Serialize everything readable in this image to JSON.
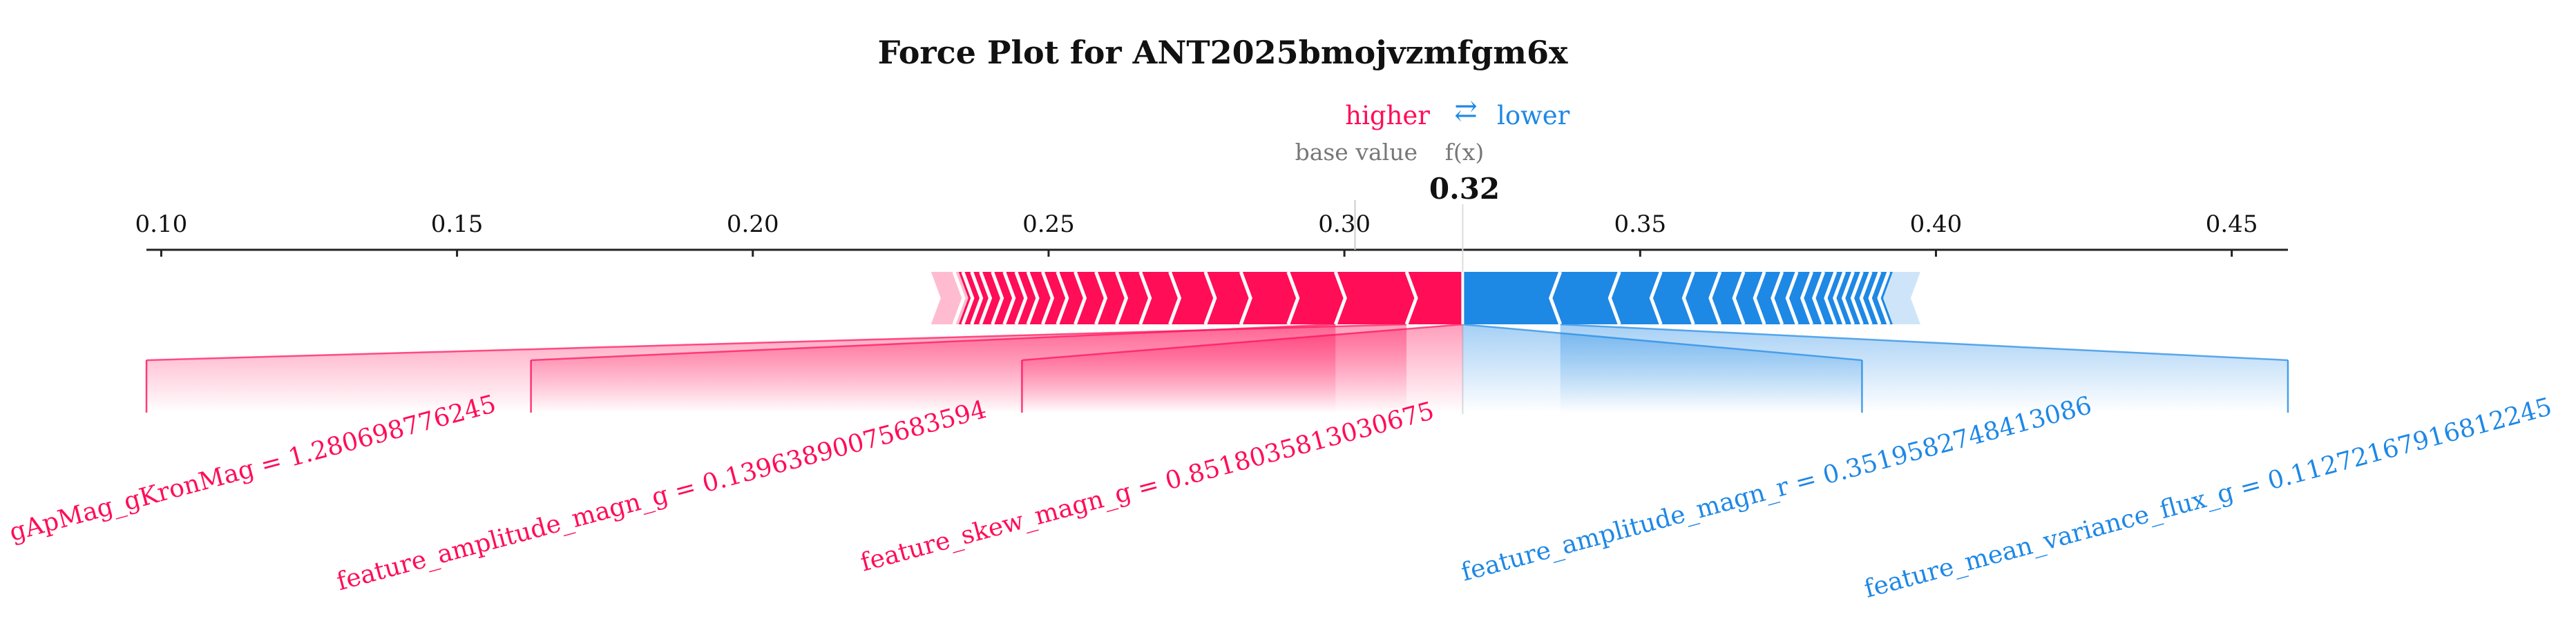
{
  "chart_data": {
    "type": "force",
    "title": "Force Plot for ANT2025bmojvzmfgm6x",
    "legend": {
      "higher": "higher",
      "lower": "lower",
      "arrows": "⇄"
    },
    "base_value_label": "base value",
    "fx_label": "f(x)",
    "output_value": 0.32,
    "output_text": "0.32",
    "base_value": 0.3018,
    "xlim": [
      0.0975,
      0.4595
    ],
    "ticks": [
      0.1,
      0.15,
      0.2,
      0.25,
      0.3,
      0.35,
      0.4,
      0.45
    ],
    "tick_labels": [
      "0.10",
      "0.15",
      "0.20",
      "0.25",
      "0.30",
      "0.35",
      "0.40",
      "0.45"
    ],
    "colors": {
      "positive": "#ff0d57",
      "negative": "#1e88e5",
      "axis": "#222222",
      "muted": "#777777"
    },
    "positive_range": [
      0.232,
      0.32
    ],
    "negative_range": [
      0.32,
      0.3955
    ],
    "positive_chevrons": [
      0.3105,
      0.2985,
      0.2905,
      0.2825,
      0.2765,
      0.2705,
      0.2655,
      0.2615,
      0.258,
      0.2545,
      0.2515,
      0.249,
      0.2465,
      0.2445,
      0.2425,
      0.2405,
      0.2385,
      0.237,
      0.2355,
      0.234
    ],
    "negative_chevrons": [
      0.3365,
      0.3465,
      0.3535,
      0.359,
      0.3635,
      0.3675,
      0.371,
      0.374,
      0.3765,
      0.379,
      0.381,
      0.383,
      0.3845,
      0.386,
      0.3875,
      0.389,
      0.3905,
      0.392
    ],
    "positive_features": [
      {
        "label": "gApMag_gKronMag = 1.280698776245",
        "start": 0.0975,
        "end": 0.3105
      },
      {
        "label": "feature_amplitude_magn_g = 0.13963890075683594",
        "start": 0.1625,
        "end": 0.2985
      },
      {
        "label": "feature_skew_magn_g = 0.8518035813030675",
        "start": 0.2455,
        "end": 0.32
      }
    ],
    "negative_features": [
      {
        "label": "feature_amplitude_magn_r = 0.3519582748413086",
        "start": 0.32,
        "end": 0.3875
      },
      {
        "label": "feature_mean_variance_flux_g = 0.11272167916812245",
        "start": 0.3365,
        "end": 0.4595
      }
    ]
  }
}
